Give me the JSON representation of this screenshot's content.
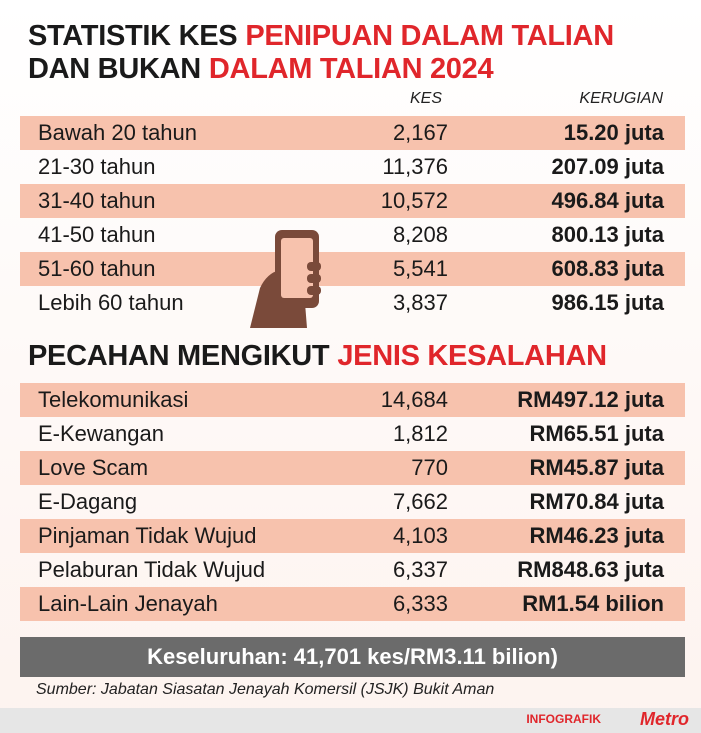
{
  "header": {
    "line1_black": "STATISTIK KES",
    "line1_red": "PENIPUAN DALAM TALIAN",
    "line2_black": "DAN BUKAN",
    "line2_red": "DALAM TALIAN 2024"
  },
  "table1": {
    "columns": [
      "KES",
      "KERUGIAN"
    ],
    "rows": [
      [
        "Bawah 20 tahun",
        "2,167",
        "15.20 juta"
      ],
      [
        "21-30 tahun",
        "11,376",
        "207.09 juta"
      ],
      [
        "31-40 tahun",
        "10,572",
        "496.84 juta"
      ],
      [
        "41-50 tahun",
        "8,208",
        "800.13 juta"
      ],
      [
        "51-60 tahun",
        "5,541",
        "608.83 juta"
      ],
      [
        "Lebih 60 tahun",
        "3,837",
        "986.15 juta"
      ]
    ]
  },
  "section2": {
    "title_black": "PECAHAN MENGIKUT",
    "title_red": "JENIS KESALAHAN",
    "rows": [
      [
        "Telekomunikasi",
        "14,684",
        "RM497.12 juta"
      ],
      [
        "E-Kewangan",
        "1,812",
        "RM65.51 juta"
      ],
      [
        "Love Scam",
        "770",
        "RM45.87 juta"
      ],
      [
        "E-Dagang",
        "7,662",
        "RM70.84 juta"
      ],
      [
        "Pinjaman Tidak Wujud",
        "4,103",
        "RM46.23 juta"
      ],
      [
        "Pelaburan Tidak Wujud",
        "6,337",
        "RM848.63 juta"
      ],
      [
        "Lain-Lain Jenayah",
        "6,333",
        "RM1.54 bilion"
      ]
    ]
  },
  "total": "Keseluruhan:  41,701 kes/RM3.11 bilion)",
  "source": "Sumber: Jabatan Siasatan Jenayah Komersil (JSJK) Bukit Aman",
  "footer": {
    "label": "INFOGRAFIK",
    "logo": "Metro"
  }
}
